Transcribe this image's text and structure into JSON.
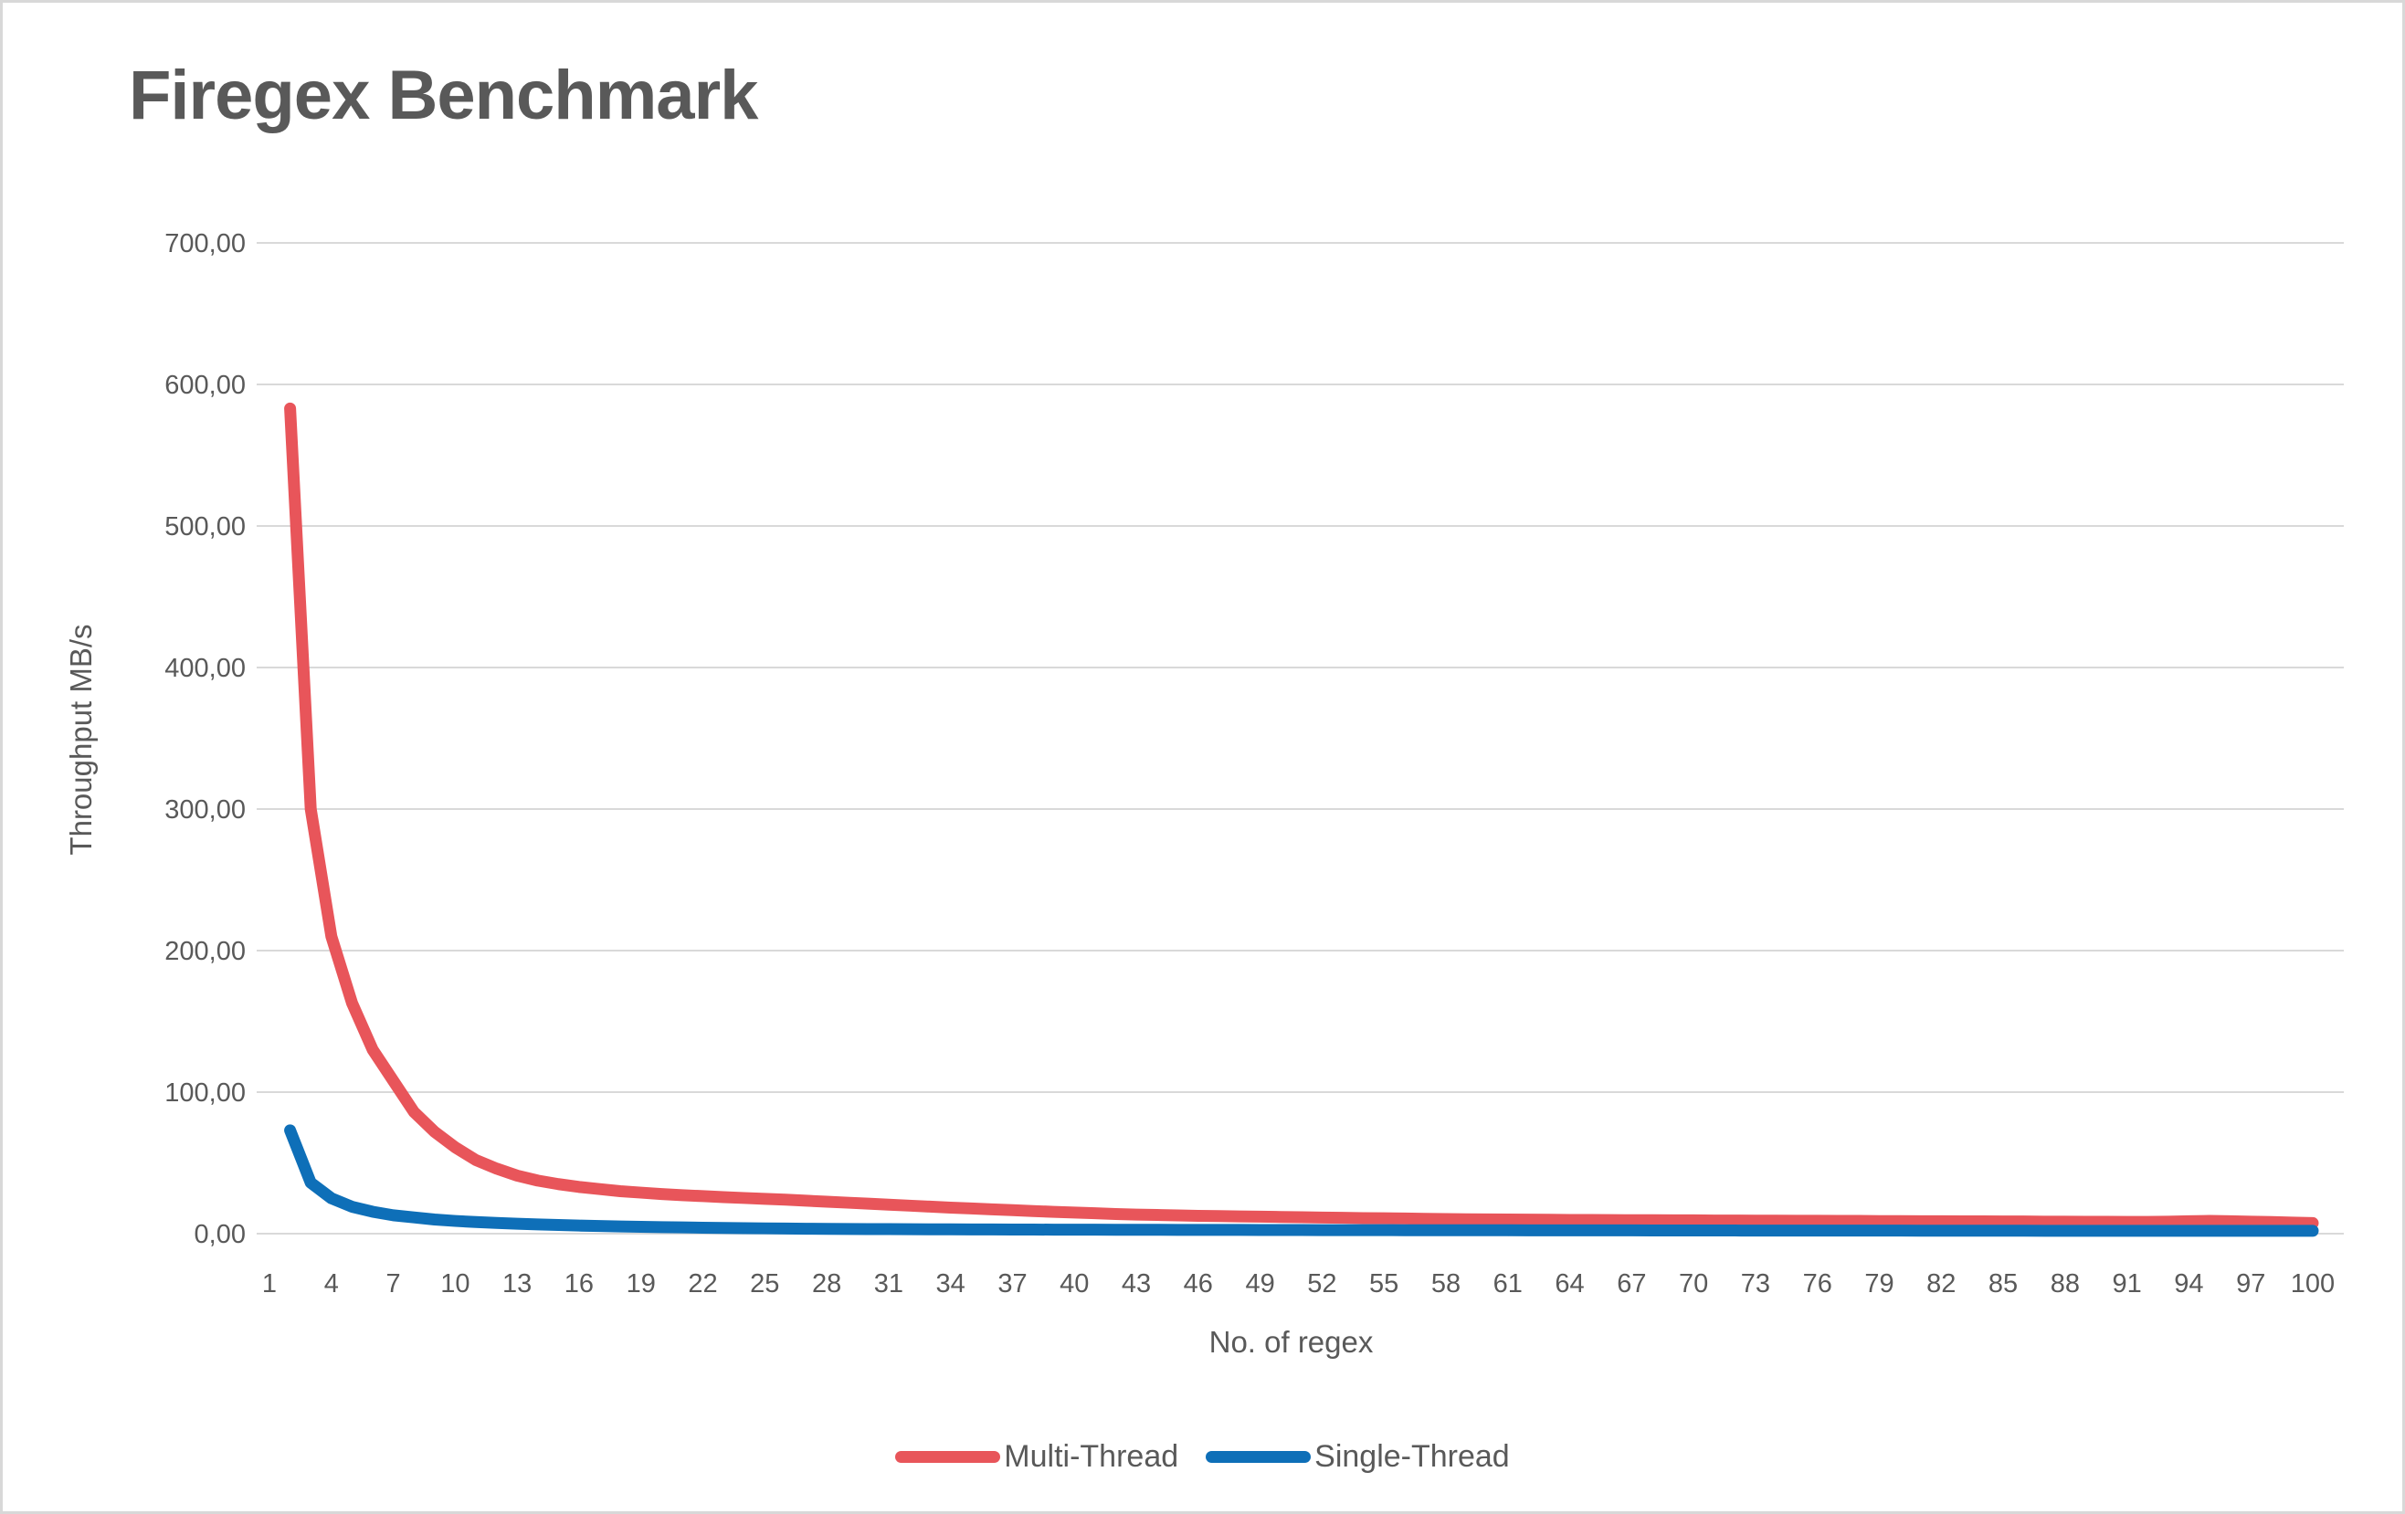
{
  "chart_data": {
    "type": "line",
    "title": "Firegex Benchmark",
    "xlabel": "No. of regex",
    "ylabel": "Throughput MB/s",
    "ylim": [
      0,
      700
    ],
    "xlim": [
      1,
      100
    ],
    "grid": "horizontal",
    "legend_position": "bottom",
    "gridline_color": "#d9d9d9",
    "axis_text_color": "#595959",
    "y_tick_values": [
      0,
      100,
      200,
      300,
      400,
      500,
      600,
      700
    ],
    "y_tick_labels": [
      "0,00",
      "100,00",
      "200,00",
      "300,00",
      "400,00",
      "500,00",
      "600,00",
      "700,00"
    ],
    "x_tick_values": [
      1,
      4,
      7,
      10,
      13,
      16,
      19,
      22,
      25,
      28,
      31,
      34,
      37,
      40,
      43,
      46,
      49,
      52,
      55,
      58,
      61,
      64,
      67,
      70,
      73,
      76,
      79,
      82,
      85,
      88,
      91,
      94,
      97,
      100
    ],
    "x_tick_labels": [
      "1",
      "4",
      "7",
      "10",
      "13",
      "16",
      "19",
      "22",
      "25",
      "28",
      "31",
      "34",
      "37",
      "40",
      "43",
      "46",
      "49",
      "52",
      "55",
      "58",
      "61",
      "64",
      "67",
      "70",
      "73",
      "76",
      "79",
      "82",
      "85",
      "88",
      "91",
      "94",
      "97",
      "100"
    ],
    "x": [
      2,
      3,
      4,
      5,
      6,
      7,
      8,
      9,
      10,
      11,
      12,
      13,
      14,
      15,
      16,
      17,
      18,
      19,
      20,
      21,
      22,
      23,
      24,
      25,
      26,
      27,
      28,
      29,
      30,
      31,
      32,
      33,
      34,
      35,
      36,
      37,
      38,
      39,
      40,
      41,
      42,
      43,
      44,
      45,
      46,
      47,
      48,
      49,
      50,
      51,
      52,
      53,
      54,
      55,
      56,
      57,
      58,
      59,
      60,
      61,
      62,
      63,
      64,
      65,
      66,
      67,
      68,
      69,
      70,
      71,
      72,
      73,
      74,
      75,
      76,
      77,
      78,
      79,
      80,
      81,
      82,
      83,
      84,
      85,
      86,
      87,
      88,
      89,
      90,
      91,
      92,
      93,
      94,
      95,
      96,
      97,
      98,
      99,
      100
    ],
    "series": [
      {
        "name": "Multi-Thread",
        "color": "#E8555A",
        "values": [
          583,
          300,
          210,
          163,
          130,
          108,
          86,
          72,
          61,
          52,
          46,
          41,
          37.5,
          35,
          33,
          31.5,
          30,
          29,
          28,
          27.2,
          26.5,
          25.8,
          25.2,
          24.6,
          24,
          23.3,
          22.6,
          21.9,
          21.2,
          20.5,
          19.8,
          19.1,
          18.4,
          17.8,
          17.2,
          16.6,
          16,
          15.4,
          14.9,
          14.4,
          13.9,
          13.5,
          13.2,
          12.9,
          12.6,
          12.4,
          12.2,
          12,
          11.8,
          11.6,
          11.4,
          11.2,
          11,
          10.9,
          10.7,
          10.5,
          10.3,
          10.2,
          10.1,
          10,
          9.9,
          9.8,
          9.7,
          9.7,
          9.6,
          9.5,
          9.5,
          9.4,
          9.4,
          9.3,
          9.3,
          9.2,
          9.2,
          9.1,
          9.1,
          9,
          9,
          8.9,
          8.9,
          8.8,
          8.8,
          8.7,
          8.7,
          8.6,
          8.6,
          8.5,
          8.5,
          8.4,
          8.4,
          8.3,
          8.3,
          8.5,
          8.8,
          9,
          8.8,
          8.5,
          8.2,
          7.8,
          7.5
        ]
      },
      {
        "name": "Single-Thread",
        "color": "#0E6FB8",
        "values": [
          73,
          36,
          25,
          19,
          15.5,
          13,
          11.5,
          10,
          9,
          8.2,
          7.6,
          7,
          6.5,
          6.1,
          5.7,
          5.4,
          5.1,
          4.8,
          4.6,
          4.4,
          4.2,
          4.05,
          3.9,
          3.75,
          3.6,
          3.5,
          3.4,
          3.3,
          3.25,
          3.2,
          3.15,
          3.1,
          3.05,
          3,
          2.95,
          2.9,
          2.88,
          2.85,
          2.82,
          2.8,
          2.78,
          2.75,
          2.72,
          2.7,
          2.68,
          2.65,
          2.63,
          2.6,
          2.58,
          2.55,
          2.53,
          2.5,
          2.5,
          2.48,
          2.45,
          2.45,
          2.42,
          2.4,
          2.4,
          2.38,
          2.35,
          2.35,
          2.32,
          2.3,
          2.3,
          2.3,
          2.28,
          2.25,
          2.25,
          2.25,
          2.22,
          2.2,
          2.2,
          2.2,
          2.2,
          2.18,
          2.15,
          2.15,
          2.15,
          2.12,
          2.1,
          2.1,
          2.1,
          2.1,
          2.08,
          2.05,
          2.05,
          2.05,
          2.05,
          2.02,
          2,
          2,
          2,
          2,
          2,
          2,
          2,
          2,
          2
        ]
      }
    ]
  }
}
